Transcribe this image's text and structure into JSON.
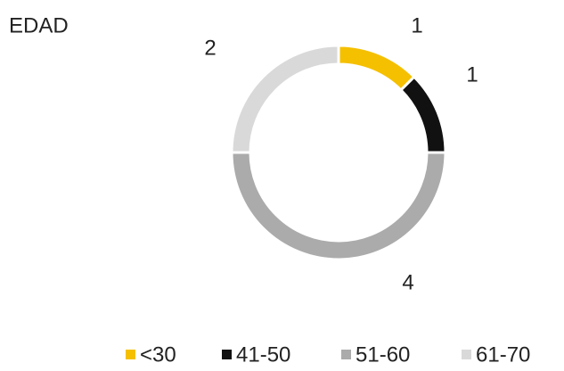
{
  "chart_data": {
    "type": "donut",
    "title": "EDAD",
    "categories": [
      "<30",
      "41-50",
      "51-60",
      "61-70"
    ],
    "values": [
      1,
      1,
      4,
      2
    ],
    "colors": [
      "#f5c000",
      "#111111",
      "#ababab",
      "#d9d9d9"
    ],
    "legend": "bottom"
  }
}
